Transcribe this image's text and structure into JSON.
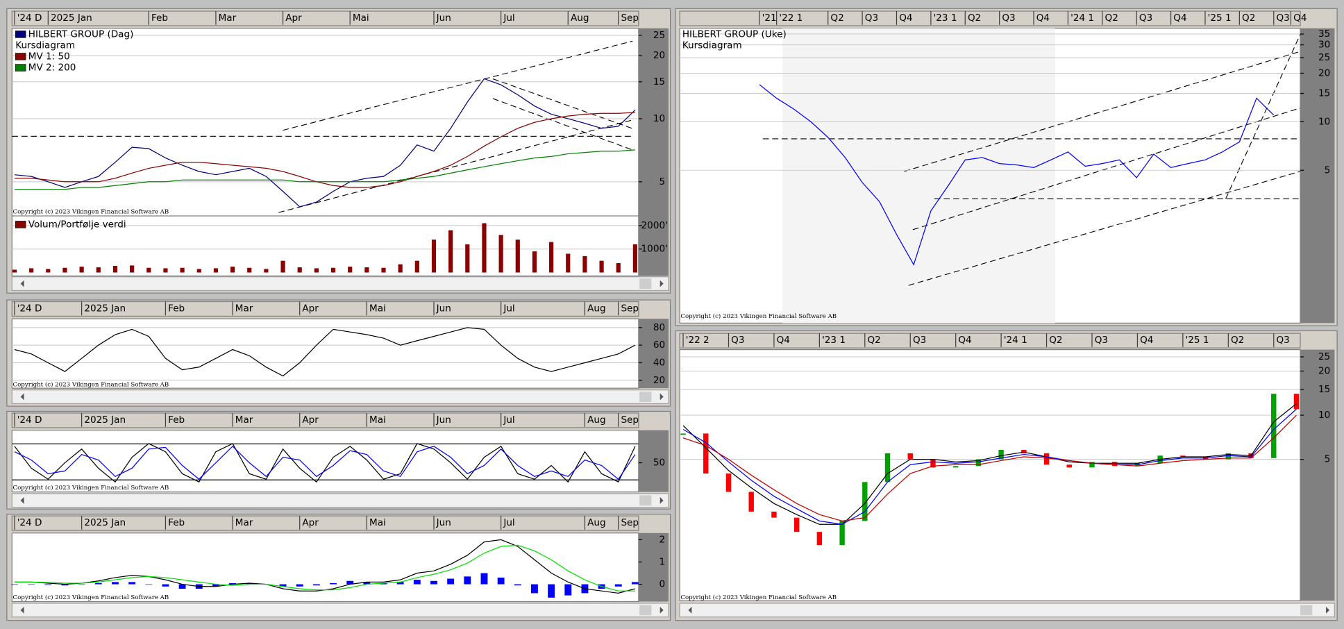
{
  "chart_data": [
    {
      "type": "line",
      "subtitle": "Kursdiagram",
      "log": true,
      "grid": true,
      "categories": [
        "'24 D",
        null,
        "2025 Jan",
        null,
        null,
        null,
        null,
        null,
        "Feb",
        null,
        null,
        null,
        "Mar",
        null,
        null,
        null,
        "Apr",
        null,
        null,
        null,
        "Mai",
        null,
        null,
        null,
        null,
        "Jun",
        null,
        null,
        null,
        "Jul",
        null,
        null,
        null,
        "Aug",
        null,
        null,
        "Sep",
        null
      ],
      "series": [
        {
          "name": "HILBERT GROUP (Dag)",
          "color": "#000080",
          "values": [
            5.4,
            5.3,
            5.0,
            4.7,
            5.0,
            5.3,
            6.2,
            7.3,
            7.2,
            6.5,
            6.0,
            5.6,
            5.4,
            5.6,
            5.8,
            5.3,
            4.5,
            3.8,
            4.0,
            4.5,
            5.0,
            5.2,
            5.3,
            6.0,
            7.5,
            7.0,
            9.0,
            12.0,
            15.5,
            14.5,
            13.0,
            11.5,
            10.5,
            10.0,
            9.5,
            9.0,
            9.2,
            11.0
          ]
        },
        {
          "name": "MV 1: 50",
          "color": "#8b0000",
          "values": [
            5.2,
            5.2,
            5.1,
            5.0,
            5.0,
            5.0,
            5.2,
            5.5,
            5.8,
            6.0,
            6.2,
            6.2,
            6.1,
            6.0,
            5.9,
            5.8,
            5.6,
            5.3,
            5.0,
            4.8,
            4.7,
            4.7,
            4.8,
            5.0,
            5.3,
            5.6,
            6.0,
            6.6,
            7.4,
            8.2,
            9.0,
            9.6,
            10.0,
            10.3,
            10.5,
            10.6,
            10.6,
            10.7
          ]
        },
        {
          "name": "MV 2: 200",
          "color": "#008000",
          "values": [
            4.6,
            4.6,
            4.6,
            4.6,
            4.7,
            4.7,
            4.8,
            4.9,
            5.0,
            5.0,
            5.1,
            5.1,
            5.1,
            5.1,
            5.1,
            5.1,
            5.1,
            5.0,
            5.0,
            5.0,
            5.0,
            5.0,
            5.0,
            5.1,
            5.2,
            5.3,
            5.5,
            5.7,
            5.9,
            6.1,
            6.3,
            6.5,
            6.6,
            6.8,
            6.9,
            7.0,
            7.0,
            7.1
          ]
        }
      ],
      "ylim": [
        3.5,
        27
      ],
      "yticks": [
        25,
        20,
        15,
        10,
        5
      ],
      "copyright": "Copyright (c) 2023 Vikingen Financial Software AB"
    },
    {
      "type": "bar",
      "title": "Volum/Portfølje verdi",
      "color": "#8b0000",
      "grid": true,
      "values": [
        120,
        180,
        150,
        200,
        250,
        220,
        280,
        300,
        200,
        180,
        200,
        150,
        180,
        250,
        200,
        150,
        500,
        220,
        180,
        200,
        250,
        220,
        200,
        350,
        500,
        1400,
        1800,
        1200,
        2100,
        1600,
        1400,
        900,
        1300,
        800,
        700,
        500,
        400,
        1200
      ],
      "ylim": [
        0,
        2300
      ],
      "yticks": [
        {
          "value": 2000,
          "label": "2000'"
        },
        {
          "value": 1000,
          "label": "1000'"
        }
      ]
    },
    {
      "type": "line",
      "grid": true,
      "categories": [
        "'24 D",
        null,
        null,
        null,
        "2025 Jan",
        null,
        null,
        null,
        null,
        "Feb",
        null,
        null,
        null,
        "Mar",
        null,
        null,
        null,
        "Apr",
        null,
        null,
        null,
        "Mai",
        null,
        null,
        null,
        "Jun",
        null,
        null,
        null,
        "Jul",
        null,
        null,
        null,
        null,
        "Aug",
        null,
        "Sep",
        null
      ],
      "color": "#000000",
      "values": [
        55,
        50,
        40,
        30,
        45,
        60,
        72,
        78,
        70,
        45,
        32,
        35,
        45,
        55,
        48,
        35,
        25,
        40,
        60,
        78,
        75,
        72,
        68,
        60,
        65,
        70,
        75,
        80,
        78,
        60,
        45,
        35,
        30,
        35,
        40,
        45,
        50,
        60
      ],
      "ylim": [
        12,
        90
      ],
      "yticks": [
        80,
        60,
        40,
        20
      ],
      "copyright": "Copyright (c) 2023 Vikingen Financial Software AB"
    },
    {
      "type": "line",
      "grid": false,
      "categories": [
        "'24 D",
        null,
        null,
        null,
        "2025 Jan",
        null,
        null,
        null,
        null,
        "Feb",
        null,
        null,
        null,
        "Mar",
        null,
        null,
        null,
        "Apr",
        null,
        null,
        null,
        "Mai",
        null,
        null,
        null,
        "Jun",
        null,
        null,
        null,
        "Jul",
        null,
        null,
        null,
        null,
        "Aug",
        null,
        "Sep",
        null
      ],
      "series": [
        {
          "color": "#000000",
          "values": [
            80,
            40,
            20,
            50,
            75,
            40,
            15,
            60,
            85,
            70,
            30,
            15,
            70,
            85,
            30,
            20,
            75,
            40,
            15,
            60,
            80,
            55,
            20,
            30,
            85,
            75,
            50,
            20,
            60,
            80,
            30,
            20,
            45,
            15,
            70,
            30,
            15,
            80
          ]
        },
        {
          "color": "#0000ff",
          "values": [
            70,
            55,
            30,
            35,
            65,
            55,
            25,
            40,
            75,
            78,
            45,
            20,
            50,
            80,
            50,
            25,
            60,
            55,
            25,
            45,
            72,
            65,
            35,
            25,
            70,
            80,
            60,
            30,
            45,
            75,
            45,
            25,
            35,
            25,
            55,
            45,
            20,
            65
          ]
        }
      ],
      "ylim": [
        0,
        100
      ],
      "yticks": [
        50
      ],
      "copyright": "Copyright (c) 2023 Vikingen Financial Software AB"
    },
    {
      "type": "line",
      "grid": false,
      "categories": [
        "'24 D",
        null,
        null,
        null,
        "2025 Jan",
        null,
        null,
        null,
        null,
        "Feb",
        null,
        null,
        null,
        "Mar",
        null,
        null,
        null,
        "Apr",
        null,
        null,
        null,
        "Mai",
        null,
        null,
        null,
        "Jun",
        null,
        null,
        null,
        "Jul",
        null,
        null,
        null,
        null,
        "Aug",
        null,
        "Sep",
        null
      ],
      "series": [
        {
          "type": "bar",
          "color": "#0000ff",
          "values": [
            0,
            0,
            -0.03,
            -0.05,
            0,
            0.05,
            0.1,
            0.1,
            0,
            -0.1,
            -0.2,
            -0.2,
            -0.1,
            0.05,
            0.05,
            0,
            -0.1,
            -0.1,
            -0.05,
            0.05,
            0.15,
            0.1,
            0.05,
            0.1,
            0.2,
            0.15,
            0.25,
            0.35,
            0.5,
            0.3,
            -0.05,
            -0.4,
            -0.6,
            -0.5,
            -0.4,
            -0.2,
            -0.1,
            0.1
          ]
        },
        {
          "color": "#000000",
          "values": [
            0.1,
            0.1,
            0.05,
            0,
            0.05,
            0.15,
            0.3,
            0.4,
            0.35,
            0.2,
            0,
            -0.1,
            -0.1,
            0,
            0.05,
            0,
            -0.2,
            -0.3,
            -0.3,
            -0.2,
            0,
            0.1,
            0.1,
            0.2,
            0.5,
            0.6,
            0.9,
            1.3,
            1.9,
            2.0,
            1.7,
            1.1,
            0.5,
            0.1,
            -0.2,
            -0.3,
            -0.4,
            -0.2
          ]
        },
        {
          "color": "#00e000",
          "values": [
            0.1,
            0.1,
            0.08,
            0.05,
            0.05,
            0.1,
            0.2,
            0.3,
            0.35,
            0.3,
            0.2,
            0.1,
            0,
            -0.05,
            0,
            0,
            -0.1,
            -0.2,
            -0.25,
            -0.25,
            -0.15,
            0,
            0.05,
            0.1,
            0.3,
            0.45,
            0.65,
            0.95,
            1.4,
            1.7,
            1.75,
            1.5,
            1.1,
            0.6,
            0.2,
            -0.1,
            -0.3,
            -0.3
          ]
        }
      ],
      "ylim": [
        -0.7,
        2.3
      ],
      "yticks": [
        2,
        1,
        0
      ],
      "copyright": "Copyright (c) 2023 Vikingen Financial Software AB"
    },
    {
      "type": "line",
      "title": "HILBERT GROUP (Uke)",
      "subtitle": "Kursdiagram",
      "log": true,
      "grid": true,
      "categories": [
        "'21",
        "'22 1",
        null,
        null,
        "Q2",
        null,
        "Q3",
        null,
        "Q4",
        null,
        "'23 1",
        null,
        "Q2",
        null,
        "Q3",
        null,
        "Q4",
        null,
        "'24 1",
        null,
        "Q2",
        null,
        "Q3",
        null,
        "Q4",
        null,
        "'25 1",
        null,
        "Q2",
        null,
        "Q3",
        "Q4"
      ],
      "color": "#0000ff",
      "values": [
        17,
        14,
        12,
        10,
        8,
        6,
        4.2,
        3.2,
        2.0,
        1.3,
        2.8,
        4.0,
        5.8,
        6.0,
        5.5,
        5.4,
        5.2,
        5.8,
        6.5,
        5.3,
        5.5,
        5.8,
        4.5,
        6.3,
        5.2,
        5.5,
        5.8,
        6.5,
        7.5,
        14,
        11,
        null
      ],
      "ylim": [
        0.6,
        38
      ],
      "yticks": [
        35,
        30,
        25,
        20,
        15,
        10,
        5
      ],
      "copyright": "Copyright (c) 2023 Vikingen Financial Software AB"
    },
    {
      "type": "line",
      "log": true,
      "grid": true,
      "categories": [
        "'22 2",
        null,
        "Q3",
        null,
        "Q4",
        null,
        "'23 1",
        null,
        "Q2",
        null,
        "Q3",
        null,
        "Q4",
        null,
        "'24 1",
        null,
        "Q2",
        null,
        "Q3",
        null,
        "Q4",
        null,
        "'25 1",
        null,
        "Q2",
        null,
        "Q3",
        null
      ],
      "series": [
        {
          "type": "candle",
          "up_color": "#00a000",
          "down_color": "#ff0000",
          "values": [
            7.5,
            4.0,
            3.0,
            2.2,
            2.0,
            1.6,
            1.3,
            1.9,
            3.5,
            5.5,
            5.0,
            4.4,
            4.5,
            5.0,
            5.8,
            5.5,
            4.6,
            4.4,
            4.8,
            4.5,
            4.7,
            5.3,
            5.2,
            5.0,
            5.5,
            5.1,
            14,
            11
          ]
        },
        {
          "color": "#000000",
          "values": [
            8.5,
            6.0,
            4.2,
            3.2,
            2.5,
            2.1,
            1.8,
            1.8,
            2.5,
            4.0,
            5.0,
            5.0,
            4.8,
            4.9,
            5.3,
            5.6,
            5.2,
            4.8,
            4.7,
            4.7,
            4.7,
            5.0,
            5.2,
            5.2,
            5.4,
            5.3,
            9.0,
            12.0
          ]
        },
        {
          "color": "#0000ff",
          "values": [
            8.0,
            6.5,
            4.8,
            3.6,
            2.8,
            2.3,
            1.9,
            1.8,
            2.2,
            3.5,
            4.6,
            4.8,
            4.7,
            4.8,
            5.1,
            5.4,
            5.2,
            4.9,
            4.7,
            4.6,
            4.6,
            4.9,
            5.1,
            5.1,
            5.3,
            5.2,
            8.0,
            11.0
          ]
        },
        {
          "color": "#c00000",
          "values": [
            7.0,
            6.2,
            5.0,
            3.9,
            3.1,
            2.5,
            2.1,
            1.9,
            2.0,
            2.9,
            4.0,
            4.5,
            4.6,
            4.6,
            4.9,
            5.2,
            5.1,
            4.9,
            4.7,
            4.6,
            4.5,
            4.7,
            4.9,
            5.0,
            5.1,
            5.1,
            7.0,
            10.0
          ]
        }
      ],
      "ylim": [
        0.55,
        28
      ],
      "yticks": [
        25,
        20,
        15,
        10,
        5
      ],
      "copyright": "Copyright (c) 2023 Vikingen Financial Software AB"
    }
  ]
}
